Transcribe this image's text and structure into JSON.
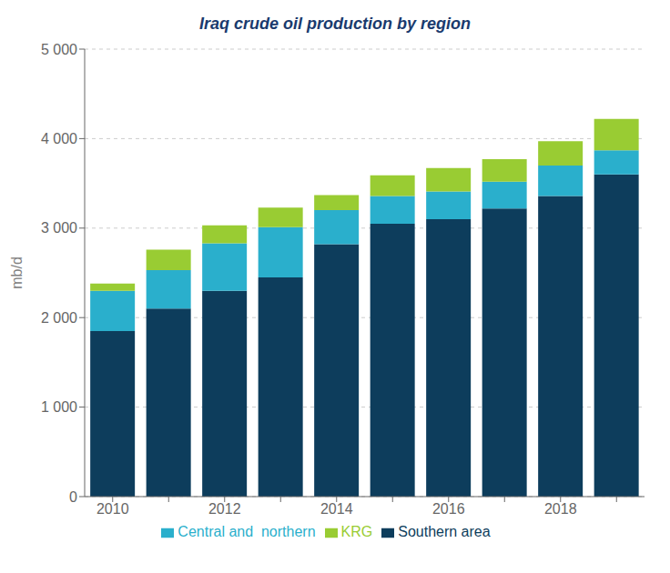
{
  "chart_data": {
    "type": "bar",
    "title": "Iraq crude oil production by region",
    "ylabel": "mb/d",
    "categories": [
      "2010",
      null,
      "2012",
      null,
      "2014",
      null,
      "2016",
      null,
      "2018",
      null
    ],
    "series": [
      {
        "name": "Southern area",
        "color": "#0d3d5c",
        "values": [
          1850,
          2100,
          2300,
          2450,
          2820,
          3050,
          3100,
          3220,
          3360,
          3600
        ]
      },
      {
        "name": "Central and  northern",
        "color": "#2aafcc",
        "values": [
          450,
          430,
          530,
          560,
          380,
          310,
          310,
          300,
          340,
          270
        ]
      },
      {
        "name": "KRG",
        "color": "#99cc33",
        "values": [
          80,
          230,
          200,
          220,
          170,
          230,
          260,
          250,
          270,
          350
        ]
      }
    ],
    "ylim": [
      0,
      5000
    ],
    "yticks": [
      0,
      {
        "value": 1000,
        "label": "1 000"
      },
      {
        "value": 2000,
        "label": "2 000"
      },
      {
        "value": 3000,
        "label": "3 000"
      },
      {
        "value": 4000,
        "label": "4 000"
      },
      {
        "value": 5000,
        "label": "5 000"
      }
    ],
    "grid": true,
    "stacked": true,
    "legend": "bottom"
  }
}
